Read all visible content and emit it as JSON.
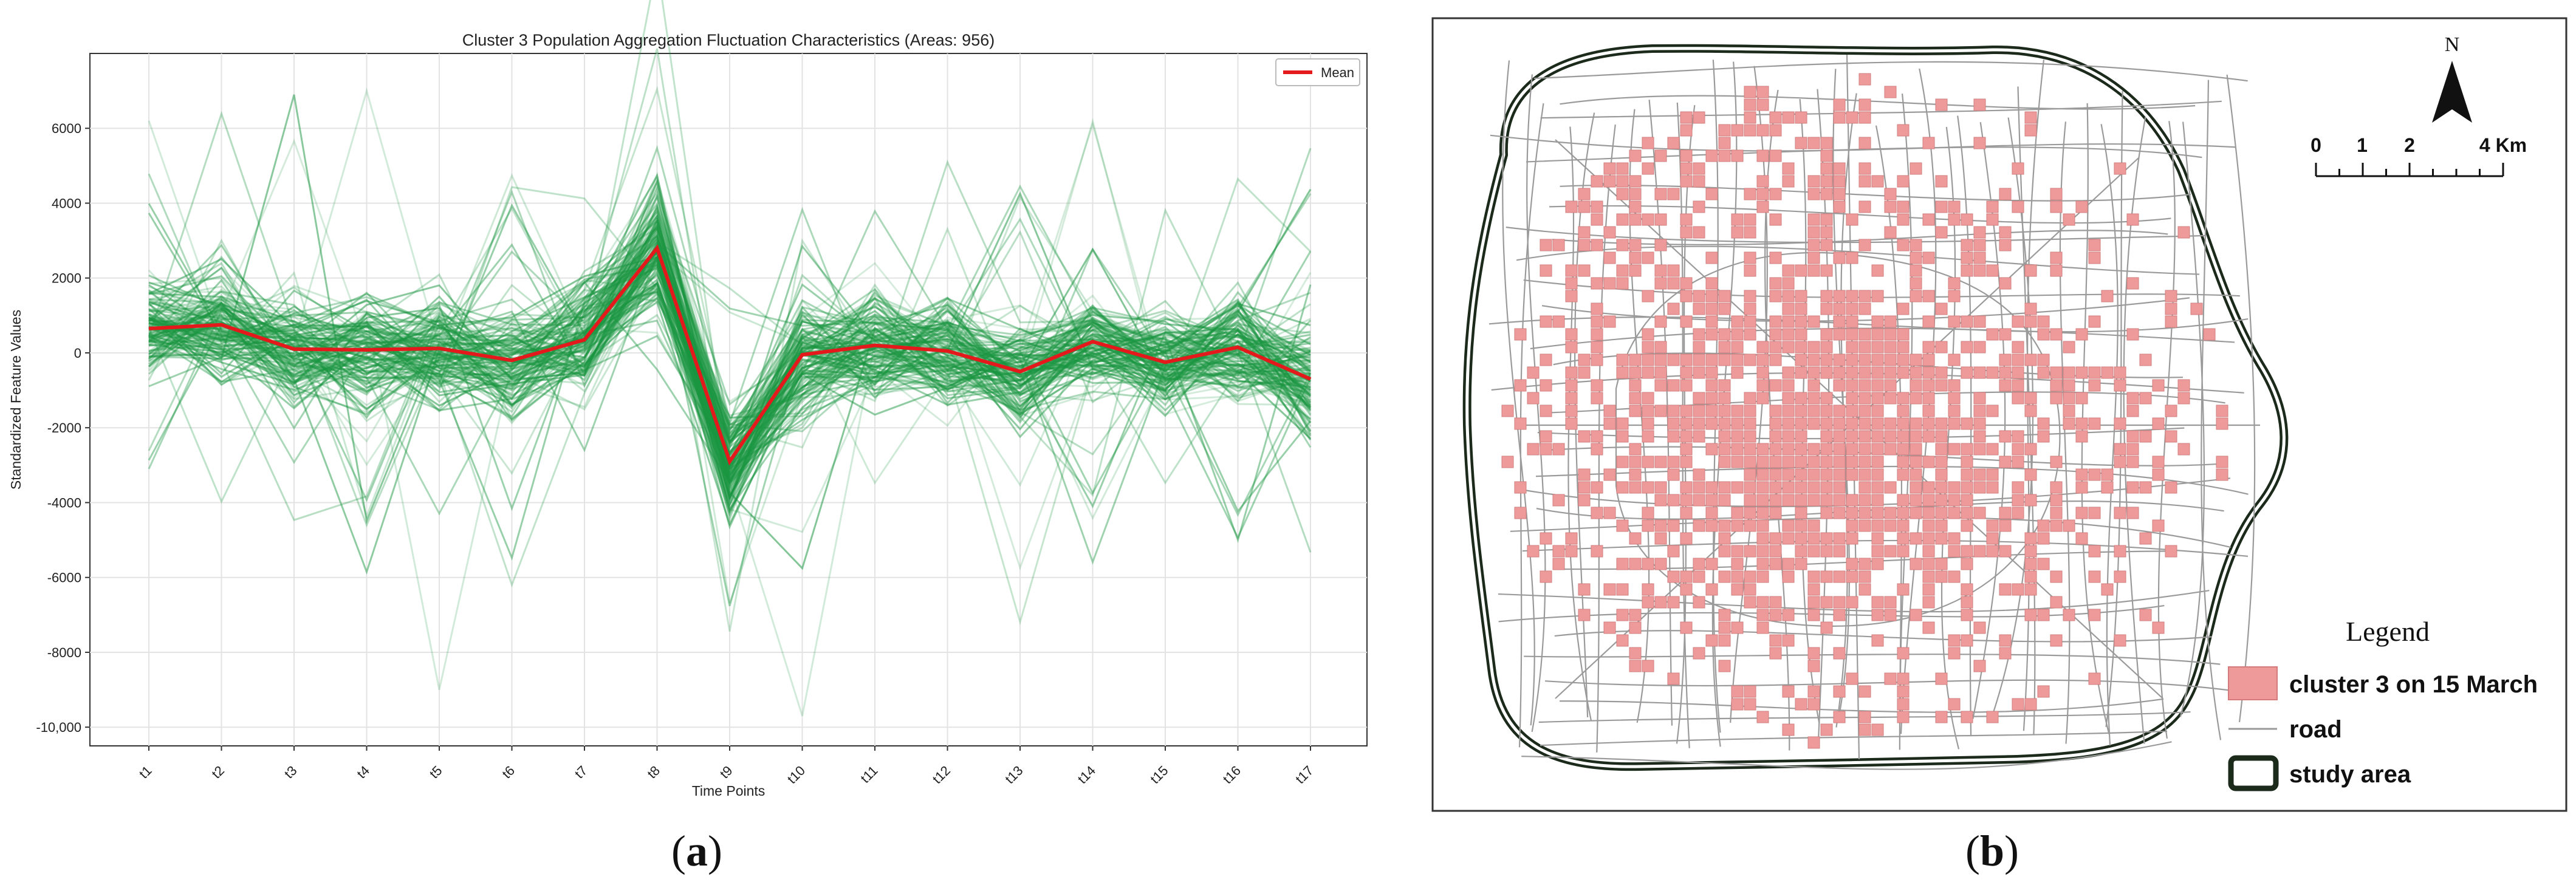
{
  "chart_data": {
    "type": "line",
    "title": "Cluster 3 Population Aggregation Fluctuation Characteristics (Areas: 956)",
    "xlabel": "Time Points",
    "ylabel": "Standardized Feature Values",
    "categories": [
      "t1",
      "t2",
      "t3",
      "t4",
      "t5",
      "t6",
      "t7",
      "t8",
      "t9",
      "t10",
      "t11",
      "t12",
      "t13",
      "t14",
      "t15",
      "t16",
      "t17"
    ],
    "ylim": [
      -10500,
      8000
    ],
    "yticks": [
      -10000,
      -8000,
      -6000,
      -4000,
      -2000,
      0,
      2000,
      4000,
      6000
    ],
    "ytick_labels": [
      "-10,000",
      "-8000",
      "-6000",
      "-4000",
      "-2000",
      "0",
      "2000",
      "4000",
      "6000"
    ],
    "grid": true,
    "legend": {
      "position": "top-right",
      "entries": [
        "Mean"
      ]
    },
    "series": [
      {
        "name": "Mean",
        "color": "#e3191c",
        "values": [
          650,
          750,
          100,
          80,
          120,
          -200,
          350,
          2800,
          -2900,
          -50,
          200,
          50,
          -500,
          300,
          -250,
          150,
          -700
        ]
      }
    ],
    "individual_series_color": "#1a9641"
  },
  "map": {
    "north_label": "N",
    "scale_labels": [
      "0",
      "1",
      "2",
      "4 Km"
    ],
    "legend_title": "Legend",
    "legend_items": [
      {
        "label": "cluster 3 on 15 March",
        "color": "#ef9a9a"
      },
      {
        "label": "road",
        "color": "#999999"
      },
      {
        "label": "study area",
        "color": "#1b2a1b"
      }
    ]
  },
  "captions": {
    "a": "a",
    "b": "b"
  }
}
